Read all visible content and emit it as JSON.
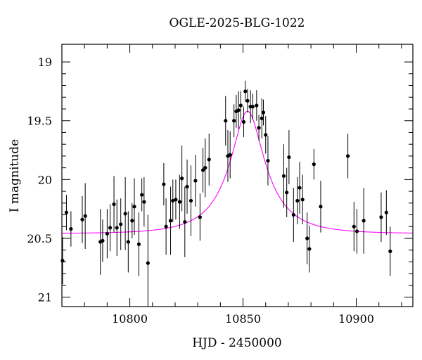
{
  "chart_data": {
    "type": "scatter",
    "title": "OGLE-2025-BLG-1022",
    "xlabel": "HJD - 2450000",
    "ylabel": "I magnitude",
    "xlim": [
      10770,
      10925
    ],
    "ylim": [
      21.08,
      18.85
    ],
    "y_inverted": true,
    "grid": false,
    "x_ticks": [
      "10800",
      "10850",
      "10900"
    ],
    "y_ticks": [
      "19",
      "19.5",
      "20",
      "20.5",
      "21"
    ],
    "colors": {
      "points": "#000000",
      "model": "#ff00ff",
      "axes": "#000000"
    },
    "series": [
      {
        "kind": "points-with-errorbars",
        "points": [
          {
            "x": 10770.3,
            "y": 20.69,
            "err": 0.2
          },
          {
            "x": 10772.0,
            "y": 20.28,
            "err": 0.15
          },
          {
            "x": 10774.0,
            "y": 20.42,
            "err": 0.15
          },
          {
            "x": 10779.0,
            "y": 20.34,
            "err": 0.2
          },
          {
            "x": 10780.3,
            "y": 20.31,
            "err": 0.28
          },
          {
            "x": 10787.0,
            "y": 20.53,
            "err": 0.28
          },
          {
            "x": 10788.0,
            "y": 20.52,
            "err": 0.18
          },
          {
            "x": 10790.0,
            "y": 20.46,
            "err": 0.21
          },
          {
            "x": 10791.3,
            "y": 20.41,
            "err": 0.2
          },
          {
            "x": 10793.0,
            "y": 20.21,
            "err": 0.24
          },
          {
            "x": 10794.3,
            "y": 20.41,
            "err": 0.24
          },
          {
            "x": 10796.0,
            "y": 20.38,
            "err": 0.22
          },
          {
            "x": 10798.0,
            "y": 20.29,
            "err": 0.31
          },
          {
            "x": 10799.3,
            "y": 20.53,
            "err": 0.26
          },
          {
            "x": 10801.0,
            "y": 20.35,
            "err": 0.15
          },
          {
            "x": 10802.0,
            "y": 20.23,
            "err": 0.24
          },
          {
            "x": 10804.0,
            "y": 20.55,
            "err": 0.27
          },
          {
            "x": 10805.3,
            "y": 20.13,
            "err": 0.14
          },
          {
            "x": 10806.3,
            "y": 20.19,
            "err": 0.21
          },
          {
            "x": 10808.0,
            "y": 20.71,
            "err": 0.41
          },
          {
            "x": 10815.0,
            "y": 20.04,
            "err": 0.18
          },
          {
            "x": 10816.0,
            "y": 20.4,
            "err": 0.24
          },
          {
            "x": 10818.0,
            "y": 20.35,
            "err": 0.29
          },
          {
            "x": 10819.0,
            "y": 20.18,
            "err": 0.18
          },
          {
            "x": 10820.3,
            "y": 20.17,
            "err": 0.17
          },
          {
            "x": 10822.0,
            "y": 20.19,
            "err": 0.23
          },
          {
            "x": 10823.0,
            "y": 19.99,
            "err": 0.28
          },
          {
            "x": 10824.3,
            "y": 20.36,
            "err": 0.3
          },
          {
            "x": 10825.3,
            "y": 20.06,
            "err": 0.23
          },
          {
            "x": 10827.0,
            "y": 20.18,
            "err": 0.3
          },
          {
            "x": 10829.0,
            "y": 20.01,
            "err": 0.22
          },
          {
            "x": 10831.0,
            "y": 20.32,
            "err": 0.2
          },
          {
            "x": 10832.3,
            "y": 19.92,
            "err": 0.19
          },
          {
            "x": 10833.3,
            "y": 19.9,
            "err": 0.25
          },
          {
            "x": 10835.0,
            "y": 19.83,
            "err": 0.22
          },
          {
            "x": 10842.3,
            "y": 19.5,
            "err": 0.21
          },
          {
            "x": 10843.3,
            "y": 19.8,
            "err": 0.22
          },
          {
            "x": 10844.3,
            "y": 19.79,
            "err": 0.2
          },
          {
            "x": 10846.0,
            "y": 19.5,
            "err": 0.14
          },
          {
            "x": 10847.0,
            "y": 19.42,
            "err": 0.14
          },
          {
            "x": 10848.0,
            "y": 19.41,
            "err": 0.16
          },
          {
            "x": 10849.0,
            "y": 19.37,
            "err": 0.12
          },
          {
            "x": 10850.3,
            "y": 19.51,
            "err": 0.13
          },
          {
            "x": 10851.0,
            "y": 19.25,
            "err": 0.09
          },
          {
            "x": 10852.0,
            "y": 19.33,
            "err": 0.1
          },
          {
            "x": 10853.3,
            "y": 19.38,
            "err": 0.14
          },
          {
            "x": 10854.3,
            "y": 19.38,
            "err": 0.11
          },
          {
            "x": 10856.0,
            "y": 19.37,
            "err": 0.13
          },
          {
            "x": 10857.0,
            "y": 19.56,
            "err": 0.11
          },
          {
            "x": 10858.3,
            "y": 19.48,
            "err": 0.17
          },
          {
            "x": 10859.0,
            "y": 19.43,
            "err": 0.11
          },
          {
            "x": 10860.0,
            "y": 19.62,
            "err": 0.16
          },
          {
            "x": 10861.0,
            "y": 19.84,
            "err": 0.21
          },
          {
            "x": 10868.0,
            "y": 19.97,
            "err": 0.27
          },
          {
            "x": 10869.3,
            "y": 20.11,
            "err": 0.21
          },
          {
            "x": 10870.3,
            "y": 19.81,
            "err": 0.23
          },
          {
            "x": 10872.3,
            "y": 20.3,
            "err": 0.23
          },
          {
            "x": 10874.0,
            "y": 20.18,
            "err": 0.2
          },
          {
            "x": 10875.0,
            "y": 20.07,
            "err": 0.22
          },
          {
            "x": 10876.3,
            "y": 20.17,
            "err": 0.21
          },
          {
            "x": 10878.3,
            "y": 20.5,
            "err": 0.22
          },
          {
            "x": 10879.3,
            "y": 20.59,
            "err": 0.2
          },
          {
            "x": 10881.3,
            "y": 19.87,
            "err": 0.13
          },
          {
            "x": 10884.3,
            "y": 20.23,
            "err": 0.22
          },
          {
            "x": 10896.3,
            "y": 19.8,
            "err": 0.19
          },
          {
            "x": 10899.0,
            "y": 20.4,
            "err": 0.21
          },
          {
            "x": 10900.3,
            "y": 20.44,
            "err": 0.19
          },
          {
            "x": 10903.3,
            "y": 20.35,
            "err": 0.28
          },
          {
            "x": 10911.0,
            "y": 20.32,
            "err": 0.21
          },
          {
            "x": 10913.3,
            "y": 20.28,
            "err": 0.19
          },
          {
            "x": 10915.0,
            "y": 20.61,
            "err": 0.21
          }
        ]
      },
      {
        "kind": "model-curve",
        "t0": 10852,
        "peak_mag": 19.42,
        "baseline_mag": 20.46,
        "tE": 20
      }
    ]
  }
}
